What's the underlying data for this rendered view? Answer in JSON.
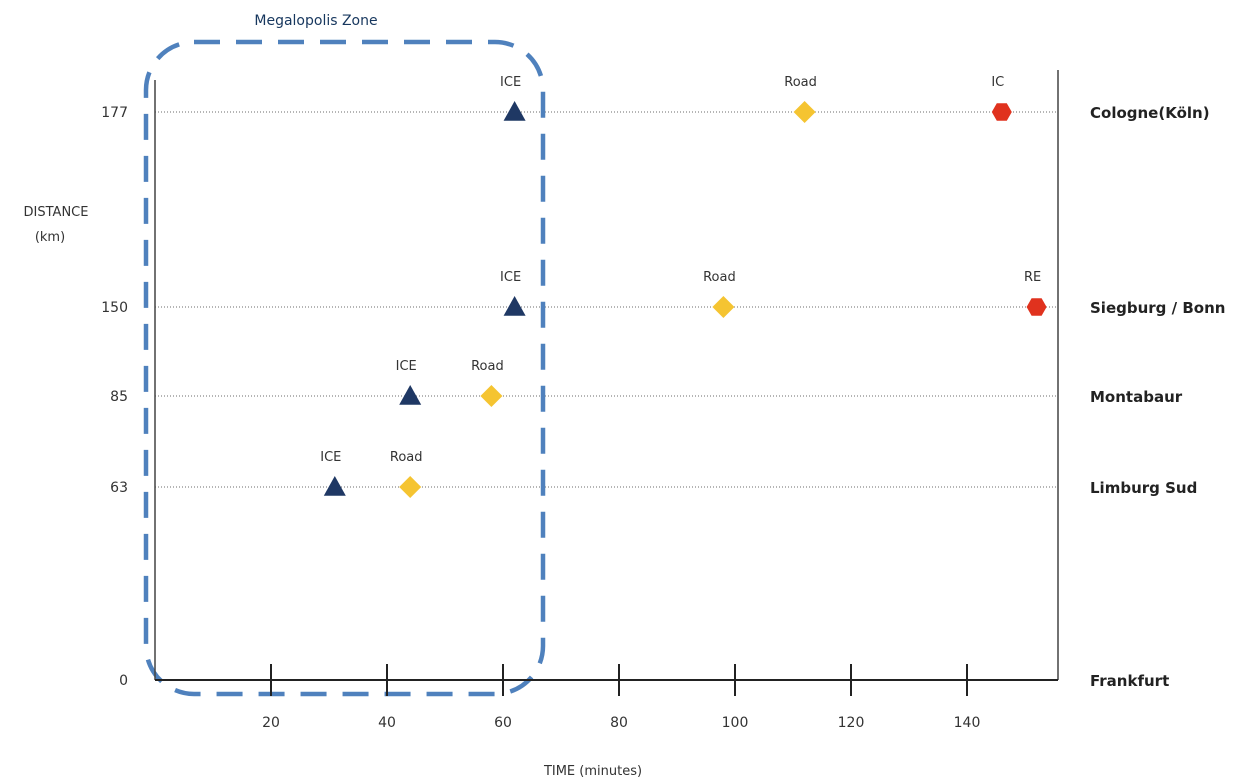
{
  "chart_data": {
    "type": "scatter",
    "title": "",
    "xlabel": "TIME (minutes)",
    "ylabel_line1": "DISTANCE",
    "ylabel_line2": "(km)",
    "xlim": [
      0,
      155
    ],
    "x_ticks": [
      20,
      40,
      60,
      80,
      100,
      120,
      140
    ],
    "y_ticks": [
      0,
      63,
      85,
      150,
      177
    ],
    "grid": "dotted horizontal lines at station distances",
    "zone": {
      "label": "Megalopolis Zone",
      "x_range": [
        0,
        66
      ],
      "color": "#4f81bd"
    },
    "stations": [
      {
        "name": "Frankfurt",
        "distance": 0
      },
      {
        "name": "Limburg Sud",
        "distance": 63
      },
      {
        "name": "Montabaur",
        "distance": 85
      },
      {
        "name": "Siegburg / Bonn",
        "distance": 150
      },
      {
        "name": "Cologne(Köln)",
        "distance": 177
      }
    ],
    "series": [
      {
        "label": "ICE",
        "marker": "triangle",
        "color": "#1f3864",
        "points": [
          {
            "x": 31,
            "y": 63
          },
          {
            "x": 44,
            "y": 85
          },
          {
            "x": 62,
            "y": 150
          },
          {
            "x": 62,
            "y": 177
          }
        ]
      },
      {
        "label": "Road",
        "marker": "diamond",
        "color": "#f5c431",
        "points": [
          {
            "x": 44,
            "y": 63
          },
          {
            "x": 58,
            "y": 85
          },
          {
            "x": 98,
            "y": 150
          },
          {
            "x": 112,
            "y": 177
          }
        ]
      },
      {
        "label": "IC",
        "marker": "hexagon",
        "color": "#e0321e",
        "points": [
          {
            "x": 146,
            "y": 177
          }
        ]
      },
      {
        "label": "RE",
        "marker": "hexagon",
        "color": "#e0321e",
        "points": [
          {
            "x": 152,
            "y": 150
          }
        ]
      }
    ]
  }
}
